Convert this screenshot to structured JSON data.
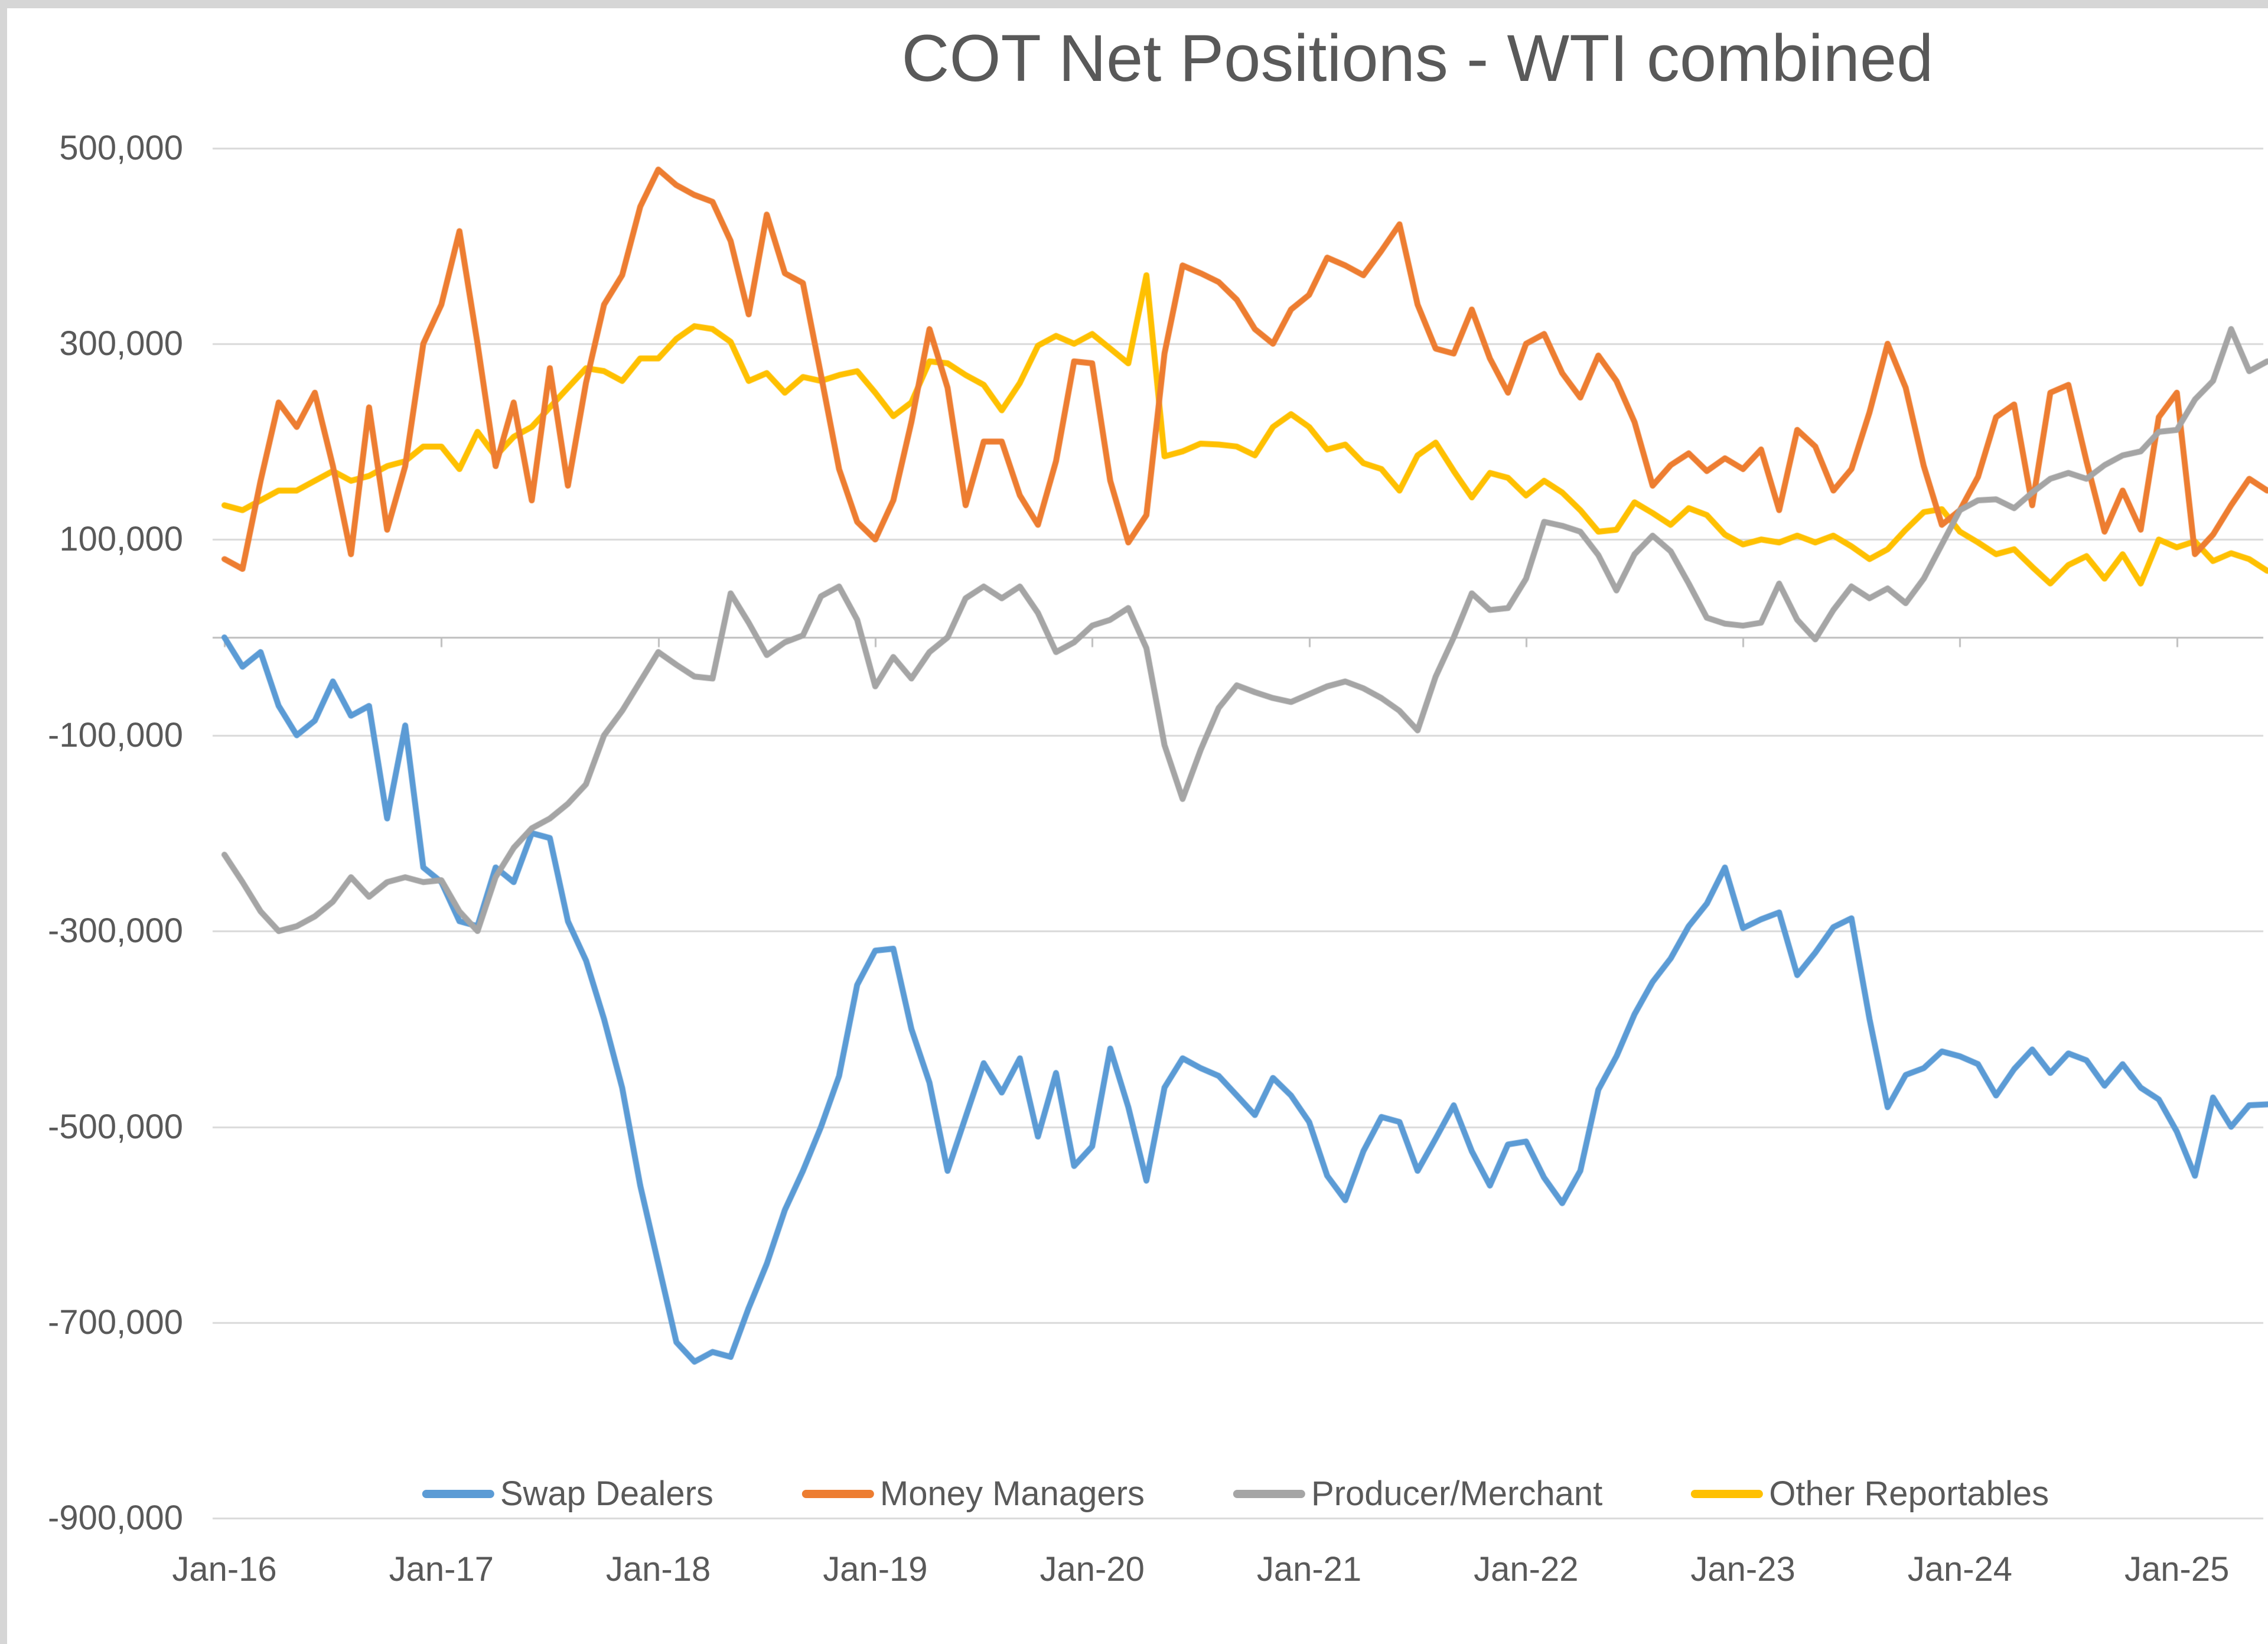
{
  "window": {
    "frame_color": "#d6d6d6",
    "background": "#ffffff"
  },
  "chart": {
    "title": "COT Net Positions - WTI combined",
    "title_color": "#595959",
    "text_color": "#595959",
    "gridline_color": "#d9d9d9",
    "zero_axis_color": "#bfbfbf",
    "y_axis": {
      "labels": [
        "500,000",
        "300,000",
        "100,000",
        "-100,000",
        "-300,000",
        "-500,000",
        "-700,000",
        "-900,000"
      ],
      "values": [
        500000,
        300000,
        100000,
        -100000,
        -300000,
        -500000,
        -700000,
        -900000
      ]
    },
    "x_axis": {
      "labels": [
        "Jan-16",
        "Jan-17",
        "Jan-18",
        "Jan-19",
        "Jan-20",
        "Jan-21",
        "Jan-22",
        "Jan-23",
        "Jan-24",
        "Jan-25"
      ]
    },
    "legend": [
      {
        "label": "Swap Dealers",
        "color": "#5B9BD5"
      },
      {
        "label": "Money Managers",
        "color": "#ED7D31"
      },
      {
        "label": "Producer/Merchant",
        "color": "#A5A5A5"
      },
      {
        "label": "Other Reportables",
        "color": "#FFC000"
      }
    ]
  },
  "chart_data": {
    "type": "line",
    "title": "COT Net Positions - WTI combined",
    "xlabel": "",
    "ylabel": "",
    "ylim": [
      -900000,
      500000
    ],
    "grid": "horizontal",
    "legend_position": "bottom",
    "x_start_month": "2016-01",
    "x_interval": "monthly",
    "n_points": 114,
    "x_tick_labels": [
      "Jan-16",
      "Jan-17",
      "Jan-18",
      "Jan-19",
      "Jan-20",
      "Jan-21",
      "Jan-22",
      "Jan-23",
      "Jan-24",
      "Jan-25"
    ],
    "series": [
      {
        "name": "Swap Dealers",
        "color": "#5B9BD5",
        "values": [
          0,
          -30000,
          -15000,
          -70000,
          -100000,
          -85000,
          -45000,
          -80000,
          -70000,
          -185000,
          -90000,
          -235000,
          -250000,
          -290000,
          -295000,
          -235000,
          -250000,
          -200000,
          -205000,
          -290000,
          -330000,
          -390000,
          -460000,
          -560000,
          -640000,
          -720000,
          -740000,
          -730000,
          -735000,
          -685000,
          -640000,
          -585000,
          -545000,
          -500000,
          -448000,
          -355000,
          -320000,
          -318000,
          -400000,
          -455000,
          -545000,
          -490000,
          -435000,
          -465000,
          -430000,
          -510000,
          -445000,
          -540000,
          -520000,
          -420000,
          -480000,
          -555000,
          -460000,
          -430000,
          -440000,
          -448000,
          -468000,
          -488000,
          -450000,
          -468000,
          -495000,
          -550000,
          -575000,
          -525000,
          -490000,
          -495000,
          -545000,
          -512000,
          -478000,
          -525000,
          -560000,
          -518000,
          -515000,
          -552000,
          -578000,
          -545000,
          -462000,
          -428000,
          -385000,
          -352000,
          -328000,
          -295000,
          -272000,
          -235000,
          -297000,
          -288000,
          -281000,
          -345000,
          -322000,
          -296000,
          -287000,
          -390000,
          -480000,
          -447000,
          -440000,
          -423000,
          -428000,
          -436000,
          -468000,
          -441000,
          -421000,
          -445000,
          -425000,
          -432000,
          -458000,
          -436000,
          -460000,
          -472000,
          -505000,
          -550000,
          -470000,
          -500000,
          -478000,
          -477000
        ]
      },
      {
        "name": "Money Managers",
        "color": "#ED7D31",
        "values": [
          80000,
          70000,
          160000,
          240000,
          215000,
          250000,
          175000,
          85000,
          235000,
          110000,
          175000,
          300000,
          340000,
          415000,
          300000,
          175000,
          240000,
          140000,
          275000,
          155000,
          260000,
          340000,
          370000,
          440000,
          478000,
          462000,
          452000,
          445000,
          405000,
          330000,
          432000,
          372000,
          362000,
          268000,
          172000,
          118000,
          100000,
          140000,
          220000,
          315000,
          255000,
          135000,
          200000,
          200000,
          145000,
          115000,
          180000,
          282000,
          280000,
          160000,
          97000,
          125000,
          290000,
          380000,
          372000,
          363000,
          345000,
          315000,
          300000,
          335000,
          350000,
          388000,
          380000,
          370000,
          395000,
          422000,
          340000,
          295000,
          290000,
          335000,
          285000,
          250000,
          300000,
          310000,
          270000,
          245000,
          288000,
          262000,
          220000,
          155000,
          176000,
          188000,
          170000,
          183000,
          172000,
          192000,
          130000,
          212000,
          195000,
          150000,
          172000,
          230000,
          300000,
          255000,
          175000,
          115000,
          130000,
          164000,
          225000,
          238000,
          135000,
          250000,
          258000,
          180000,
          108000,
          150000,
          110000,
          225000,
          250000,
          85000,
          105000,
          135000,
          162000,
          150000
        ]
      },
      {
        "name": "Producer/Merchant",
        "color": "#A5A5A5",
        "values": [
          -222000,
          -250000,
          -280000,
          -300000,
          -295000,
          -285000,
          -270000,
          -245000,
          -265000,
          -250000,
          -245000,
          -250000,
          -248000,
          -280000,
          -300000,
          -245000,
          -215000,
          -195000,
          -185000,
          -170000,
          -150000,
          -100000,
          -75000,
          -45000,
          -15000,
          -28000,
          -40000,
          -42000,
          45000,
          15000,
          -18000,
          -5000,
          2000,
          42000,
          52000,
          18000,
          -50000,
          -20000,
          -42000,
          -15000,
          0,
          40000,
          52000,
          40000,
          52000,
          25000,
          -15000,
          -5000,
          12000,
          18000,
          30000,
          -11000,
          -110000,
          -165000,
          -115000,
          -72000,
          -49000,
          -56000,
          -62000,
          -66000,
          -58000,
          -50000,
          -45000,
          -52000,
          -62000,
          -75000,
          -95000,
          -40000,
          0,
          45000,
          28000,
          30000,
          60000,
          118000,
          114000,
          108000,
          84000,
          48000,
          85000,
          104000,
          88000,
          55000,
          20000,
          14000,
          12000,
          15000,
          55000,
          18000,
          -2000,
          28000,
          52000,
          40000,
          50000,
          35000,
          60000,
          95000,
          130000,
          140000,
          141000,
          132000,
          148000,
          162000,
          168000,
          162000,
          176000,
          186000,
          190000,
          210000,
          212000,
          243000,
          262000,
          315000,
          272000,
          282000
        ]
      },
      {
        "name": "Other Reportables",
        "color": "#FFC000",
        "values": [
          135000,
          130000,
          140000,
          150000,
          150000,
          160000,
          170000,
          160000,
          165000,
          175000,
          180000,
          195000,
          195000,
          172000,
          210000,
          185000,
          205000,
          215000,
          235000,
          255000,
          275000,
          272000,
          262000,
          285000,
          285000,
          305000,
          318000,
          315000,
          302000,
          262000,
          270000,
          250000,
          266000,
          262000,
          268000,
          272000,
          250000,
          226000,
          240000,
          282000,
          280000,
          268000,
          258000,
          232000,
          260000,
          298000,
          308000,
          300000,
          310000,
          295000,
          280000,
          370000,
          185000,
          190000,
          198000,
          197000,
          195000,
          186000,
          215000,
          228000,
          215000,
          192000,
          197000,
          178000,
          172000,
          150000,
          186000,
          199000,
          170000,
          143000,
          168000,
          163000,
          145000,
          160000,
          148000,
          130000,
          108000,
          110000,
          138000,
          127000,
          115000,
          132000,
          125000,
          105000,
          95000,
          100000,
          97000,
          104000,
          97000,
          104000,
          93000,
          80000,
          90000,
          110000,
          128000,
          131000,
          108000,
          97000,
          85000,
          90000,
          72000,
          55000,
          74000,
          83000,
          60000,
          85000,
          55000,
          100000,
          92000,
          98000,
          78000,
          86000,
          80000,
          68000
        ]
      }
    ]
  }
}
